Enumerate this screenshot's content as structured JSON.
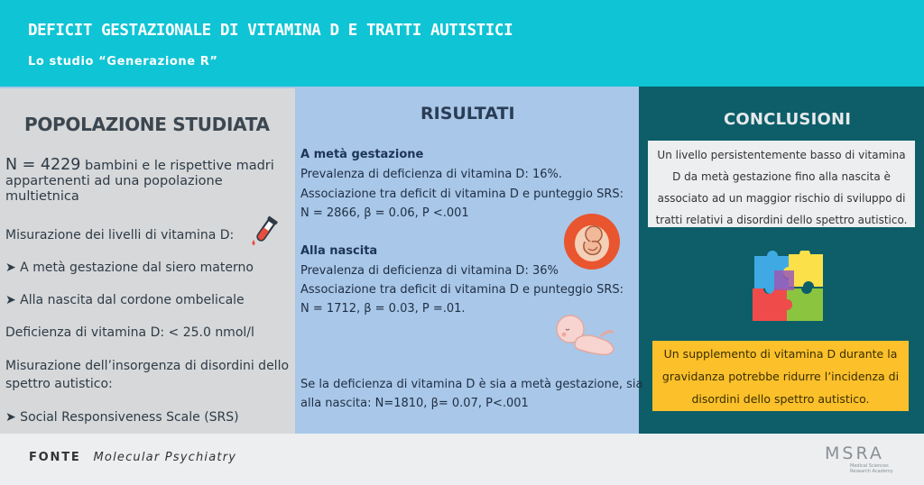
{
  "header": {
    "title": "DEFICIT GESTAZIONALE DI VITAMINA D E TRATTI AUTISTICI",
    "subtitle": "Lo studio “Generazione R”"
  },
  "left": {
    "title": "POPOLAZIONE STUDIATA",
    "n_value": "N = 4229",
    "n_desc": " bambini e le rispettive madri appartenenti ad una popolazione multietnica",
    "measure_label": "Misurazione dei livelli di vitamina D:",
    "bullet1": "➤ A metà gestazione dal siero materno",
    "bullet2": "➤ Alla nascita dal cordone ombelicale",
    "deficiency": "Deficienza di vitamina D: < 25.0 nmol/l",
    "onset_line1": "Misurazione dell’insorgenza di disordini dello",
    "onset_line2": "spettro autistico:",
    "bullet3": "➤ Social Responsiveness Scale (SRS)"
  },
  "middle": {
    "title": "RISULTATI",
    "s1_heading": "A metà gestazione",
    "s1_line1": "Prevalenza di deficienza di vitamina D: 16%.",
    "s1_line2": "Associazione tra deficit di vitamina D e punteggio SRS:",
    "s1_line3": "N = 2866, β = 0.06, P <.001",
    "s2_heading": "Alla nascita",
    "s2_line1": "Prevalenza di deficienza di vitamina D: 36%",
    "s2_line2": "Associazione tra deficit di vitamina D e punteggio SRS:",
    "s2_line3": "N = 1712, β = 0.03, P =.01.",
    "both_line1": "Se la deficienza di vitamina D è sia a metà gestazione, sia",
    "both_line2": "alla nascita: N=1810, β= 0.07, P<.001"
  },
  "right": {
    "title": "CONCLUSIONI",
    "box1": "Un livello persistentemente basso di vitamina D da metà gestazione fino alla nascita è associato ad un maggior rischio di sviluppo di tratti relativi a disordini dello spettro autistico.",
    "box2": "Un supplemento di vitamina D durante la gravidanza potrebbe ridurre l’incidenza di disordini dello spettro autistico."
  },
  "footer": {
    "fonte_label": "FONTE",
    "fonte_source": "Molecular Psychiatry",
    "logo_text": "MSRA",
    "logo_subtitle": "Medical Sciences Research Academy"
  },
  "icons": [
    "test-tube-icon",
    "fetus-icon",
    "baby-icon",
    "puzzle-icon"
  ],
  "colors": {
    "header": "#0fc4d4",
    "left_panel": "#d6d8da",
    "middle_panel": "#a9c7e8",
    "right_panel": "#0d5e68",
    "highlight_box": "#fbc02a"
  }
}
